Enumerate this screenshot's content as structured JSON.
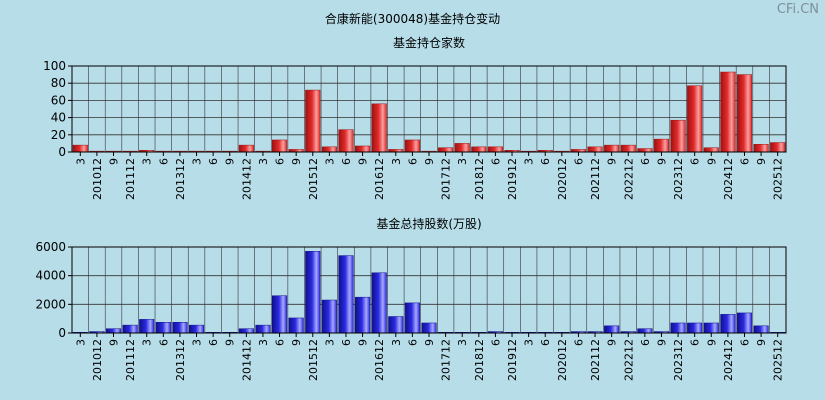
{
  "page": {
    "title": "合康新能(300048)基金持仓变动",
    "watermark": "CFi.CN"
  },
  "chart_data": [
    {
      "type": "bar",
      "title": "基金持仓家数",
      "ylim": [
        0,
        100
      ],
      "yticks": [
        "0",
        "20",
        "40",
        "60",
        "80",
        "100"
      ],
      "color": "#e32a2a",
      "tick_labels": [
        "3",
        "201012",
        "9",
        "201112",
        "3",
        "6",
        "201312",
        "3",
        "6",
        "9",
        "201412",
        "3",
        "6",
        "9",
        "201512",
        "3",
        "6",
        "9",
        "201612",
        "3",
        "6",
        "9",
        "201712",
        "3",
        "201812",
        "6",
        "201912",
        "3",
        "6",
        "202012",
        "6",
        "202112",
        "9",
        "202212",
        "6",
        "9",
        "202312",
        "6",
        "9",
        "202412",
        "6",
        "9",
        "202512"
      ],
      "values": [
        8,
        1,
        1,
        1,
        2,
        1,
        1,
        1,
        1,
        1,
        8,
        1,
        14,
        3,
        72,
        6,
        26,
        7,
        56,
        3,
        14,
        1,
        5,
        10,
        6,
        6,
        2,
        1,
        2,
        1,
        3,
        6,
        8,
        8,
        4,
        15,
        37,
        77,
        5,
        93,
        90,
        9,
        11
      ]
    },
    {
      "type": "bar",
      "title": "基金总持股数(万股)",
      "ylim": [
        0,
        6000
      ],
      "yticks": [
        "0",
        "2000",
        "4000",
        "6000"
      ],
      "color": "#2a2ae3",
      "tick_labels": [
        "3",
        "201012",
        "9",
        "201112",
        "3",
        "6",
        "201312",
        "3",
        "6",
        "9",
        "201412",
        "3",
        "6",
        "9",
        "201512",
        "3",
        "6",
        "9",
        "201612",
        "3",
        "6",
        "9",
        "201712",
        "3",
        "201812",
        "6",
        "201912",
        "3",
        "6",
        "202012",
        "6",
        "202112",
        "9",
        "202212",
        "6",
        "9",
        "202312",
        "6",
        "9",
        "202412",
        "6",
        "9",
        "202512"
      ],
      "values": [
        50,
        100,
        300,
        550,
        950,
        750,
        750,
        550,
        50,
        50,
        300,
        550,
        2600,
        1050,
        5700,
        2300,
        5400,
        2500,
        4200,
        1150,
        2100,
        700,
        50,
        50,
        50,
        100,
        50,
        50,
        50,
        50,
        100,
        100,
        500,
        100,
        300,
        100,
        700,
        700,
        700,
        1300,
        1400,
        500,
        50
      ]
    }
  ]
}
